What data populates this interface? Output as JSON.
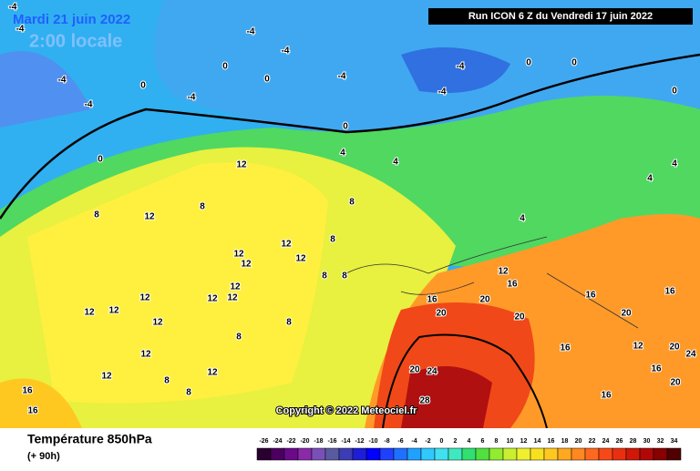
{
  "header": {
    "date": "Mardi 21 juin 2022",
    "time": "2:00 locale",
    "run": "Run ICON 6 Z du Vendredi 17 juin 2022"
  },
  "copyright": "Copyright © 2022 Meteociel.fr",
  "footer": {
    "title": "Température 850hPa",
    "lead": "(+ 90h)"
  },
  "contour_labels": [
    -4,
    -4,
    -4,
    -4,
    -4,
    -4,
    -4,
    -4,
    -4,
    -4,
    0,
    0,
    0,
    0,
    0,
    0,
    0,
    0,
    4,
    4,
    4,
    4,
    4,
    12,
    12,
    12,
    12,
    12,
    12,
    12,
    12,
    12,
    12,
    12,
    12,
    12,
    12,
    12,
    12,
    8,
    8,
    8,
    8,
    8,
    8,
    8,
    8,
    8,
    8,
    16,
    16,
    16,
    16,
    16,
    16,
    16,
    16,
    12,
    12,
    20,
    20,
    20,
    20,
    20,
    20,
    24,
    24,
    28,
    16,
    20
  ],
  "colorbar": {
    "ticks": [
      -26,
      -24,
      -22,
      -20,
      -18,
      -16,
      -14,
      -12,
      -10,
      -8,
      -6,
      -4,
      -2,
      0,
      2,
      4,
      6,
      8,
      10,
      12,
      14,
      16,
      18,
      20,
      22,
      24,
      26,
      28,
      30,
      32,
      34
    ],
    "colors": [
      "#2a0030",
      "#4b0060",
      "#6a0a8a",
      "#8a2aa8",
      "#7a50b8",
      "#5a5aa0",
      "#3c3cb4",
      "#1e1ed8",
      "#0000ff",
      "#2040ff",
      "#2070ff",
      "#20a0ff",
      "#30c8ff",
      "#40e0f0",
      "#40e8c0",
      "#30e070",
      "#50e040",
      "#90ec30",
      "#c8f030",
      "#f0f030",
      "#f8e020",
      "#ffc820",
      "#ffa820",
      "#ff8820",
      "#ff6820",
      "#f84818",
      "#e83010",
      "#d01808",
      "#b00808",
      "#880000",
      "#500000"
    ]
  }
}
